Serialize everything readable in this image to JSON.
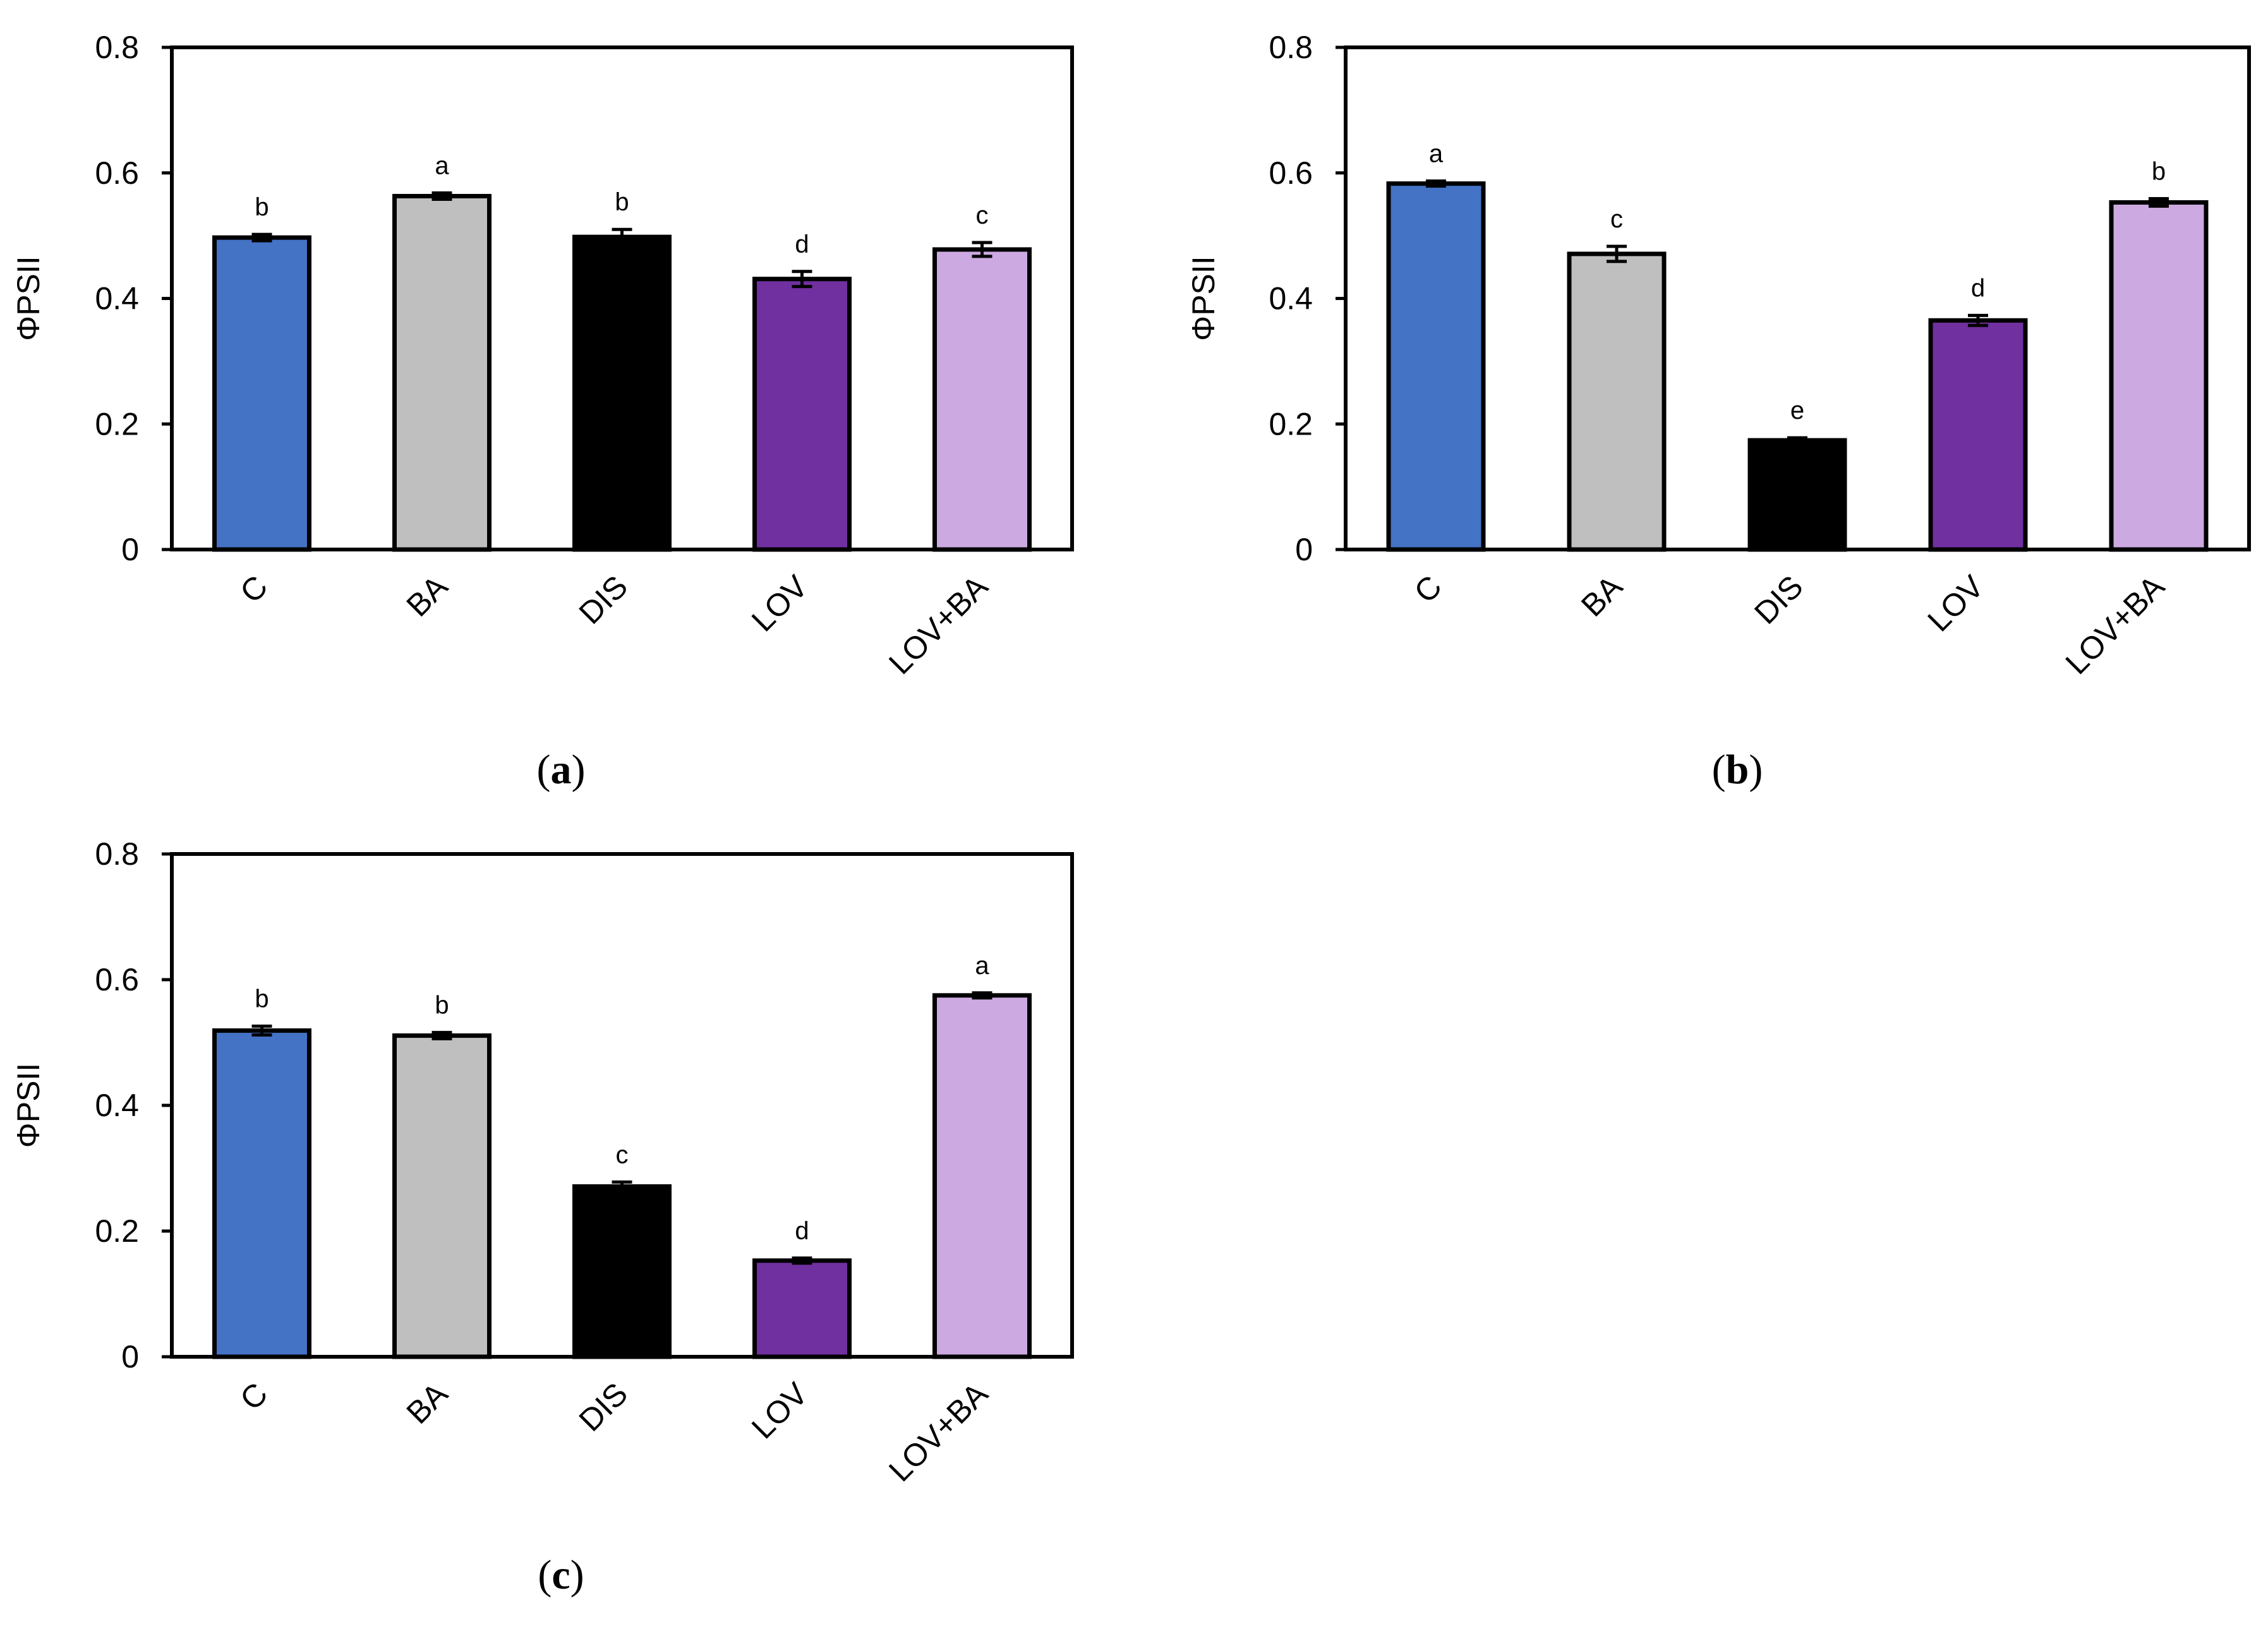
{
  "figure": {
    "categories": [
      "C",
      "BA",
      "DIS",
      "LOV",
      "LOV+BA"
    ],
    "bar_colors": [
      "#4472C4",
      "#BFBFBF",
      "#000000",
      "#7030A0",
      "#CCA9E0"
    ]
  },
  "chart_data": [
    {
      "type": "bar",
      "panel": "a",
      "caption_open": "(",
      "caption_letter": "a",
      "caption_close": ")",
      "title": "",
      "xlabel": "",
      "ylabel": "ΦPSII",
      "ylim": [
        0,
        0.8
      ],
      "yticks": [
        "0",
        "0.2",
        "0.4",
        "0.6",
        "0.8"
      ],
      "categories": [
        "C",
        "BA",
        "DIS",
        "LOV",
        "LOV+BA"
      ],
      "values": [
        0.497,
        0.563,
        0.498,
        0.431,
        0.478
      ],
      "errors": [
        0.005,
        0.005,
        0.012,
        0.012,
        0.011
      ],
      "letters": [
        "b",
        "a",
        "b",
        "d",
        "c"
      ]
    },
    {
      "type": "bar",
      "panel": "b",
      "caption_open": "(",
      "caption_letter": "b",
      "caption_close": ")",
      "title": "",
      "xlabel": "",
      "ylabel": "ΦPSII",
      "ylim": [
        0,
        0.8
      ],
      "yticks": [
        "0",
        "0.2",
        "0.4",
        "0.6",
        "0.8"
      ],
      "categories": [
        "C",
        "BA",
        "DIS",
        "LOV",
        "LOV+BA"
      ],
      "values": [
        0.583,
        0.471,
        0.174,
        0.365,
        0.553
      ],
      "errors": [
        0.004,
        0.012,
        0.004,
        0.008,
        0.006
      ],
      "letters": [
        "a",
        "c",
        "e",
        "d",
        "b"
      ]
    },
    {
      "type": "bar",
      "panel": "c",
      "caption_open": "(",
      "caption_letter": "c",
      "caption_close": ")",
      "title": "",
      "xlabel": "",
      "ylabel": "ΦPSII",
      "ylim": [
        0,
        0.8
      ],
      "yticks": [
        "0",
        "0.2",
        "0.4",
        "0.6",
        "0.8"
      ],
      "categories": [
        "C",
        "BA",
        "DIS",
        "LOV",
        "LOV+BA"
      ],
      "values": [
        0.519,
        0.511,
        0.271,
        0.153,
        0.575
      ],
      "errors": [
        0.007,
        0.005,
        0.007,
        0.004,
        0.004
      ],
      "letters": [
        "b",
        "b",
        "c",
        "d",
        "a"
      ]
    }
  ]
}
